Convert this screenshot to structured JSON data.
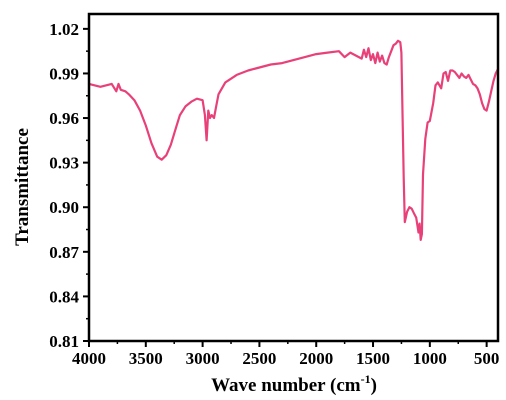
{
  "chart_data": {
    "type": "line",
    "title": "",
    "xlabel": "Wave number (cm",
    "xlabel_sup": "-1",
    "xlabel_suffix": ")",
    "ylabel": "Transmittance",
    "xlim": [
      4000,
      400
    ],
    "ylim": [
      0.81,
      1.03
    ],
    "x_reversed": true,
    "grid": false,
    "legend": "none",
    "line_color": "#e8417a",
    "x_ticks": [
      4000,
      3500,
      3000,
      2500,
      2000,
      1500,
      1000,
      500
    ],
    "x_tick_labels": [
      "4000",
      "3500",
      "3000",
      "2500",
      "2000",
      "1500",
      "1000",
      "500"
    ],
    "y_ticks": [
      0.81,
      0.84,
      0.87,
      0.9,
      0.93,
      0.96,
      0.99,
      1.02
    ],
    "y_tick_labels": [
      "0.81",
      "0.84",
      "0.87",
      "0.90",
      "0.93",
      "0.96",
      "0.99",
      "1.02"
    ],
    "series": [
      {
        "x": [
          4000,
          3900,
          3800,
          3760,
          3740,
          3720,
          3680,
          3650,
          3600,
          3550,
          3500,
          3450,
          3400,
          3360,
          3320,
          3280,
          3240,
          3200,
          3150,
          3100,
          3050,
          3000,
          2980,
          2965,
          2950,
          2935,
          2920,
          2900,
          2880,
          2860,
          2800,
          2700,
          2600,
          2500,
          2400,
          2300,
          2200,
          2100,
          2000,
          1900,
          1800,
          1750,
          1700,
          1650,
          1600,
          1580,
          1560,
          1540,
          1520,
          1500,
          1480,
          1460,
          1440,
          1420,
          1400,
          1380,
          1360,
          1340,
          1320,
          1300,
          1280,
          1260,
          1250,
          1240,
          1230,
          1220,
          1200,
          1180,
          1160,
          1140,
          1120,
          1100,
          1090,
          1080,
          1070,
          1060,
          1040,
          1020,
          1000,
          970,
          950,
          930,
          900,
          880,
          860,
          840,
          820,
          800,
          780,
          760,
          740,
          720,
          700,
          680,
          660,
          640,
          620,
          600,
          580,
          560,
          540,
          520,
          500,
          480,
          460,
          440,
          420,
          400
        ],
        "y": [
          0.983,
          0.981,
          0.983,
          0.978,
          0.983,
          0.979,
          0.978,
          0.976,
          0.972,
          0.965,
          0.955,
          0.943,
          0.934,
          0.932,
          0.935,
          0.942,
          0.952,
          0.962,
          0.968,
          0.971,
          0.973,
          0.972,
          0.962,
          0.945,
          0.965,
          0.96,
          0.962,
          0.96,
          0.968,
          0.976,
          0.984,
          0.989,
          0.992,
          0.994,
          0.996,
          0.997,
          0.999,
          1.001,
          1.003,
          1.004,
          1.005,
          1.001,
          1.004,
          1.002,
          1.0,
          1.006,
          1.001,
          1.007,
          0.999,
          1.003,
          0.997,
          1.004,
          0.998,
          1.002,
          0.997,
          0.996,
          1.001,
          1.005,
          1.009,
          1.01,
          1.012,
          1.011,
          1.004,
          0.96,
          0.92,
          0.89,
          0.897,
          0.9,
          0.899,
          0.896,
          0.893,
          0.883,
          0.889,
          0.878,
          0.882,
          0.922,
          0.946,
          0.957,
          0.958,
          0.97,
          0.982,
          0.984,
          0.98,
          0.99,
          0.991,
          0.985,
          0.992,
          0.992,
          0.991,
          0.989,
          0.987,
          0.99,
          0.988,
          0.987,
          0.989,
          0.986,
          0.983,
          0.982,
          0.98,
          0.976,
          0.97,
          0.966,
          0.965,
          0.971,
          0.978,
          0.985,
          0.99,
          0.993
        ]
      }
    ]
  }
}
